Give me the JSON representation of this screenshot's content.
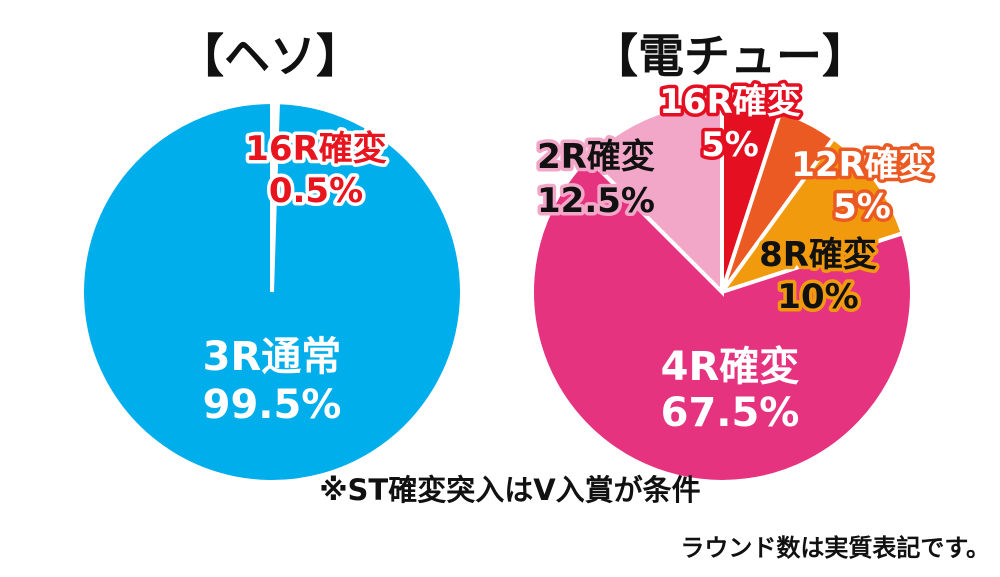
{
  "chart_data": [
    {
      "type": "pie",
      "title": "【ヘソ】",
      "slices": [
        {
          "label": "16R確変",
          "value_text": "0.5%",
          "value": 0.5,
          "color": "#ffffff",
          "label_fill": "#e8141e",
          "label_stroke": "#ffffff"
        },
        {
          "label": "3R通常",
          "value_text": "99.5%",
          "value": 99.5,
          "color": "#00aeeb",
          "label_fill": "#ffffff",
          "label_stroke": "none"
        }
      ]
    },
    {
      "type": "pie",
      "title": "【電チュー】",
      "slices": [
        {
          "label": "16R確変",
          "value_text": "5%",
          "value": 5,
          "color": "#e50f22",
          "label_fill": "#ffffff",
          "label_stroke": "#e50f22"
        },
        {
          "label": "12R確変",
          "value_text": "5%",
          "value": 5,
          "color": "#ec5a23",
          "label_fill": "#ffffff",
          "label_stroke": "#ec5a23"
        },
        {
          "label": "8R確変",
          "value_text": "10%",
          "value": 10,
          "color": "#f29a0d",
          "label_fill": "#111111",
          "label_stroke": "#f29a0d"
        },
        {
          "label": "4R確変",
          "value_text": "67.5%",
          "value": 67.5,
          "color": "#e6337f",
          "label_fill": "#ffffff",
          "label_stroke": "none"
        },
        {
          "label": "2R確変",
          "value_text": "12.5%",
          "value": 12.5,
          "color": "#f2a7c8",
          "label_fill": "#111111",
          "label_stroke": "#f2a7c8"
        }
      ]
    }
  ],
  "note": "※ST確変突入はV入賞が条件",
  "footnote": "ラウンド数は実質表記です。"
}
